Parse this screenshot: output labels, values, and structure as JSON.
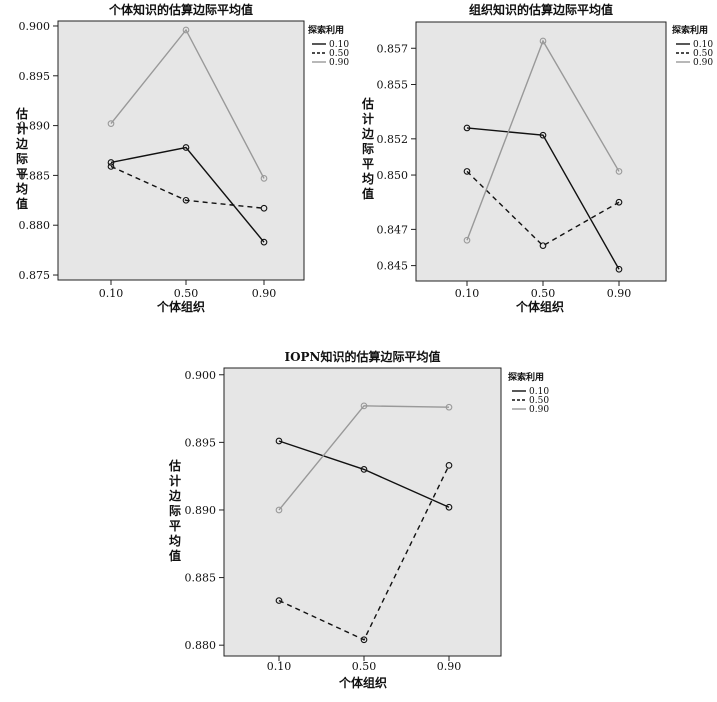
{
  "chart_data": [
    {
      "type": "line",
      "title": "个体知识的估算边际平均值",
      "xlabel": "个体组织",
      "ylabel": "估计边际平均值",
      "categories": [
        "0.10",
        "0.50",
        "0.90"
      ],
      "ylim": [
        0.8745,
        0.9005
      ],
      "yticks": [
        "0.875",
        "0.880",
        "0.885",
        "0.890",
        "0.895",
        "0.900"
      ],
      "legend_title": "探索利用",
      "legend_position": "top-right",
      "grid": false,
      "series": [
        {
          "name": "0.10",
          "values": [
            0.8863,
            0.8878,
            0.8783
          ],
          "color": "#111111",
          "dash": "solid"
        },
        {
          "name": "0.50",
          "values": [
            0.8859,
            0.8825,
            0.8817
          ],
          "color": "#111111",
          "dash": "dashed"
        },
        {
          "name": "0.90",
          "values": [
            0.8902,
            0.8996,
            0.8847
          ],
          "color": "#999999",
          "dash": "solid"
        }
      ]
    },
    {
      "type": "line",
      "title": "组织知识的估算边际平均值",
      "xlabel": "个体组织",
      "ylabel": "估计边际平均值",
      "categories": [
        "0.10",
        "0.50",
        "0.90"
      ],
      "ylim": [
        0.84415,
        0.85845
      ],
      "yticks": [
        "0.845",
        "0.847",
        "0.850",
        "0.852",
        "0.855",
        "0.857"
      ],
      "legend_title": "探索利用",
      "legend_position": "top-right",
      "grid": false,
      "series": [
        {
          "name": "0.10",
          "values": [
            0.8526,
            0.8522,
            0.8448
          ],
          "color": "#111111",
          "dash": "solid"
        },
        {
          "name": "0.50",
          "values": [
            0.8502,
            0.8461,
            0.8485
          ],
          "color": "#111111",
          "dash": "dashed"
        },
        {
          "name": "0.90",
          "values": [
            0.8464,
            0.8574,
            0.8502
          ],
          "color": "#999999",
          "dash": "solid"
        }
      ]
    },
    {
      "type": "line",
      "title": "IOPN知识的估算边际平均值",
      "xlabel": "个体组织",
      "ylabel": "估计边际平均值",
      "categories": [
        "0.10",
        "0.50",
        "0.90"
      ],
      "ylim": [
        0.8792,
        0.9005
      ],
      "yticks": [
        "0.880",
        "0.885",
        "0.890",
        "0.895",
        "0.900"
      ],
      "legend_title": "探索利用",
      "legend_position": "top-right",
      "grid": false,
      "series": [
        {
          "name": "0.10",
          "values": [
            0.8951,
            0.893,
            0.8902
          ],
          "color": "#111111",
          "dash": "solid"
        },
        {
          "name": "0.50",
          "values": [
            0.8833,
            0.8804,
            0.8933
          ],
          "color": "#111111",
          "dash": "dashed"
        },
        {
          "name": "0.90",
          "values": [
            0.89,
            0.8977,
            0.8976
          ],
          "color": "#999999",
          "dash": "solid"
        }
      ]
    }
  ]
}
